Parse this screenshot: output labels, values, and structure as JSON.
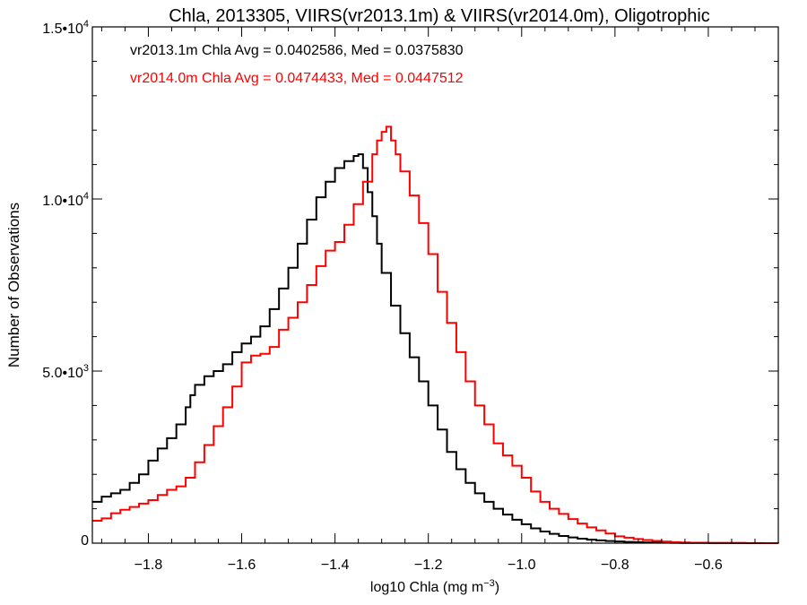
{
  "chart_data": {
    "type": "line",
    "title": "Chla, 2013305, VIIRS(vr2013.1m) & VIIRS(vr2014.0m), Oligotrophic",
    "xlabel": "log10 Chla (mg m",
    "xlabel_sup": "−3",
    "xlabel_close": ")",
    "ylabel": "Number of Observations",
    "xlim": [
      -1.92,
      -0.45
    ],
    "ylim": [
      0,
      15000
    ],
    "x_ticks": [
      {
        "value": -1.8,
        "label": "−1.8"
      },
      {
        "value": -1.6,
        "label": "−1.6"
      },
      {
        "value": -1.4,
        "label": "−1.4"
      },
      {
        "value": -1.2,
        "label": "−1.2"
      },
      {
        "value": -1.0,
        "label": "−1.0"
      },
      {
        "value": -0.8,
        "label": "−0.8"
      },
      {
        "value": -0.6,
        "label": "−0.6"
      }
    ],
    "y_ticks": [
      {
        "value": 0,
        "mantissa": "0",
        "exp": ""
      },
      {
        "value": 5000,
        "mantissa": "5.0•10",
        "exp": "3"
      },
      {
        "value": 10000,
        "mantissa": "1.0•10",
        "exp": "4"
      },
      {
        "value": 15000,
        "mantissa": "1.5•10",
        "exp": "4"
      }
    ],
    "annotations": [
      {
        "text": "vr2013.1m Chla Avg = 0.0402586, Med = 0.0375830",
        "color": "#000000"
      },
      {
        "text": "vr2014.0m Chla Avg = 0.0474433, Med = 0.0447512",
        "color": "#ff0000"
      }
    ],
    "series": [
      {
        "color": "#000000",
        "style": "step",
        "x": [
          -1.92,
          -1.9,
          -1.88,
          -1.86,
          -1.84,
          -1.82,
          -1.8,
          -1.78,
          -1.76,
          -1.74,
          -1.72,
          -1.71,
          -1.7,
          -1.68,
          -1.66,
          -1.64,
          -1.62,
          -1.6,
          -1.58,
          -1.56,
          -1.54,
          -1.52,
          -1.5,
          -1.48,
          -1.46,
          -1.44,
          -1.42,
          -1.4,
          -1.38,
          -1.36,
          -1.35,
          -1.34,
          -1.33,
          -1.32,
          -1.31,
          -1.3,
          -1.28,
          -1.26,
          -1.24,
          -1.22,
          -1.2,
          -1.18,
          -1.16,
          -1.14,
          -1.12,
          -1.1,
          -1.08,
          -1.06,
          -1.04,
          -1.02,
          -1.0,
          -0.98,
          -0.96,
          -0.94,
          -0.92,
          -0.9,
          -0.88,
          -0.86,
          -0.84,
          -0.82,
          -0.8,
          -0.78,
          -0.76,
          -0.74,
          -0.72,
          -0.7,
          -0.68,
          -0.66,
          -0.64,
          -0.6,
          -0.56,
          -0.52,
          -0.48,
          -0.45
        ],
        "y": [
          1200,
          1350,
          1450,
          1550,
          1750,
          2000,
          2400,
          2750,
          3050,
          3450,
          3950,
          4300,
          4600,
          4850,
          5000,
          5200,
          5550,
          5800,
          6000,
          6300,
          6800,
          7400,
          8000,
          8700,
          9400,
          10050,
          10500,
          10900,
          11100,
          11250,
          11300,
          10900,
          10200,
          9500,
          8700,
          7850,
          6900,
          6100,
          5400,
          4700,
          4000,
          3300,
          2650,
          2150,
          1750,
          1450,
          1200,
          1000,
          830,
          680,
          550,
          430,
          340,
          270,
          210,
          165,
          130,
          100,
          80,
          62,
          48,
          37,
          28,
          21,
          16,
          12,
          9,
          7,
          5,
          3,
          2,
          1,
          0,
          0
        ]
      },
      {
        "color": "#ff0000",
        "style": "step",
        "x": [
          -1.92,
          -1.9,
          -1.88,
          -1.86,
          -1.84,
          -1.82,
          -1.8,
          -1.78,
          -1.76,
          -1.74,
          -1.72,
          -1.7,
          -1.68,
          -1.66,
          -1.64,
          -1.62,
          -1.6,
          -1.58,
          -1.56,
          -1.54,
          -1.52,
          -1.5,
          -1.48,
          -1.46,
          -1.44,
          -1.42,
          -1.4,
          -1.38,
          -1.36,
          -1.34,
          -1.32,
          -1.31,
          -1.3,
          -1.29,
          -1.28,
          -1.27,
          -1.26,
          -1.24,
          -1.22,
          -1.2,
          -1.18,
          -1.16,
          -1.14,
          -1.12,
          -1.1,
          -1.08,
          -1.06,
          -1.04,
          -1.02,
          -1.0,
          -0.98,
          -0.96,
          -0.94,
          -0.92,
          -0.9,
          -0.88,
          -0.86,
          -0.84,
          -0.82,
          -0.8,
          -0.78,
          -0.76,
          -0.74,
          -0.72,
          -0.7,
          -0.68,
          -0.66,
          -0.64,
          -0.6,
          -0.56,
          -0.52,
          -0.48,
          -0.45
        ],
        "y": [
          650,
          720,
          870,
          970,
          1050,
          1150,
          1250,
          1400,
          1550,
          1650,
          1900,
          2350,
          2850,
          3400,
          3950,
          4550,
          5250,
          5450,
          5500,
          5700,
          6200,
          6550,
          7000,
          7500,
          8050,
          8500,
          8750,
          9250,
          9850,
          10500,
          11300,
          11700,
          11950,
          12100,
          11700,
          11300,
          10800,
          10100,
          9300,
          8400,
          7300,
          6400,
          5550,
          4700,
          4000,
          3450,
          2900,
          2550,
          2250,
          1900,
          1500,
          1200,
          1000,
          850,
          700,
          570,
          460,
          370,
          280,
          200,
          160,
          120,
          90,
          65,
          45,
          30,
          20,
          14,
          8,
          5,
          2,
          1,
          0
        ]
      }
    ]
  }
}
